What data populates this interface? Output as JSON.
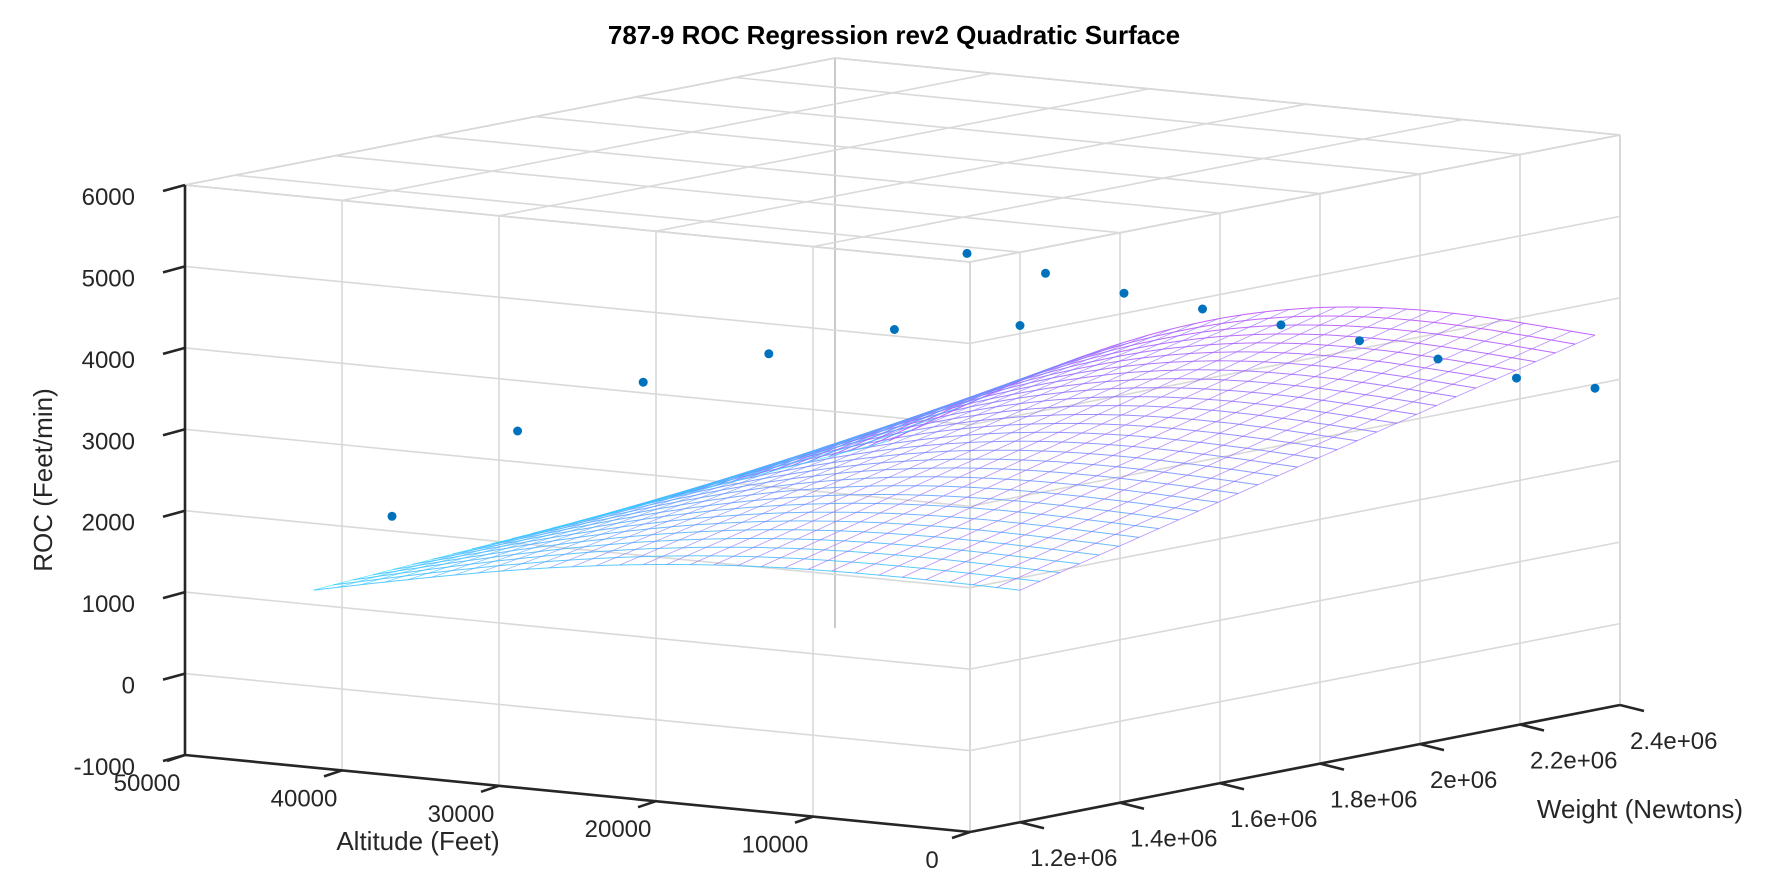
{
  "chart_data": {
    "type": "surface-scatter-3d",
    "title": "787-9 ROC Regression rev2 Quadratic Surface",
    "xlabel": "Altitude (Feet)",
    "ylabel": "Weight (Newtons)",
    "zlabel": "ROC (Feet/min)",
    "xlim": [
      0,
      50000
    ],
    "ylim": [
      1100000,
      2400000
    ],
    "zlim": [
      -1000,
      6000
    ],
    "grid": true,
    "x_ticks": [
      {
        "value": 0,
        "label": "0"
      },
      {
        "value": 10000,
        "label": "10000"
      },
      {
        "value": 20000,
        "label": "20000"
      },
      {
        "value": 30000,
        "label": "30000"
      },
      {
        "value": 40000,
        "label": "40000"
      },
      {
        "value": 50000,
        "label": "50000"
      }
    ],
    "y_ticks": [
      {
        "value": 1200000,
        "label": "1.2e+06"
      },
      {
        "value": 1400000,
        "label": "1.4e+06"
      },
      {
        "value": 1600000,
        "label": "1.6e+06"
      },
      {
        "value": 1800000,
        "label": "1.8e+06"
      },
      {
        "value": 2000000,
        "label": "2e+06"
      },
      {
        "value": 2200000,
        "label": "2.2e+06"
      },
      {
        "value": 2400000,
        "label": "2.4e+06"
      }
    ],
    "z_ticks": [
      {
        "value": -1000,
        "label": "-1000"
      },
      {
        "value": 0,
        "label": "0"
      },
      {
        "value": 1000,
        "label": "1000"
      },
      {
        "value": 2000,
        "label": "2000"
      },
      {
        "value": 3000,
        "label": "3000"
      },
      {
        "value": 4000,
        "label": "4000"
      },
      {
        "value": 5000,
        "label": "5000"
      },
      {
        "value": 6000,
        "label": "6000"
      }
    ],
    "surface": {
      "colormap": [
        "#00ffff",
        "#ff00ff"
      ],
      "x_range": [
        0,
        45000
      ],
      "y_range": [
        1200000,
        2350000
      ],
      "approx_z_corners": {
        "x0_yMin": 1850,
        "x0_yMax": 3600,
        "x45000_yMin": 1000,
        "x45000_yMax": 1450
      }
    },
    "scatter": {
      "color": "#0072bd",
      "series": [
        {
          "name": "",
          "x": [
            0,
            5000,
            10000,
            15000,
            20000,
            25000,
            30000,
            35000,
            40000
          ],
          "y": [
            2350000,
            2350000,
            2350000,
            2350000,
            2350000,
            2350000,
            2350000,
            2350000,
            2350000
          ],
          "z": [
            2950,
            2980,
            3120,
            3250,
            3350,
            3450,
            3550,
            3700,
            3850
          ]
        },
        {
          "name": "",
          "x": [
            0,
            8000,
            16000,
            24000,
            32000,
            40000
          ],
          "y": [
            1200000,
            1200000,
            1200000,
            1200000,
            1200000,
            1200000
          ],
          "z": [
            5100,
            4900,
            4450,
            3950,
            3200,
            2000
          ]
        }
      ]
    }
  }
}
